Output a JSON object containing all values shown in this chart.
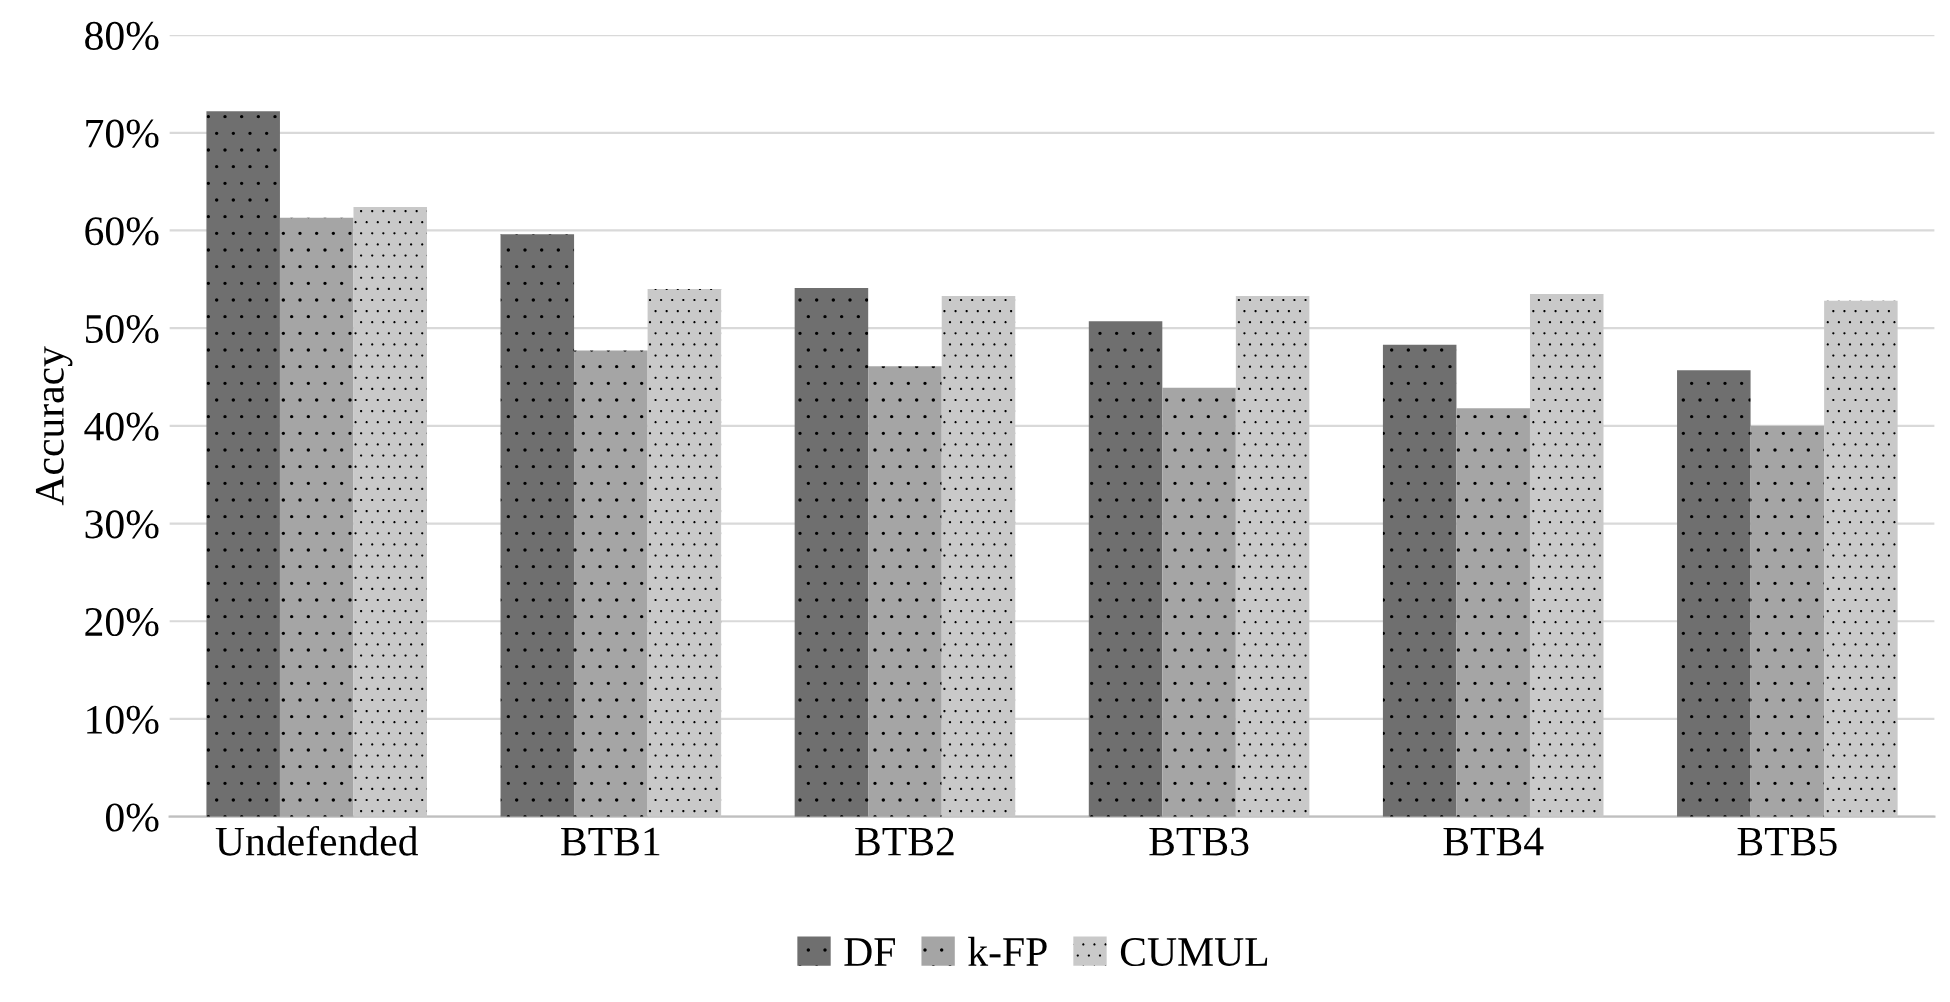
{
  "chart_data": {
    "type": "bar",
    "ylabel": "Accuracy",
    "categories": [
      "Undefended",
      "BTB1",
      "BTB2",
      "BTB3",
      "BTB4",
      "BTB5"
    ],
    "series": [
      {
        "name": "DF",
        "color": "#6f6f6f",
        "values": [
          72.2,
          59.6,
          54.1,
          50.7,
          48.3,
          45.7
        ]
      },
      {
        "name": "k-FP",
        "color": "#a5a5a5",
        "values": [
          61.3,
          47.7,
          46.1,
          43.9,
          41.8,
          40.0
        ]
      },
      {
        "name": "CUMUL",
        "color": "#c9c9c9",
        "values": [
          62.4,
          54.0,
          53.3,
          53.3,
          53.5,
          52.8
        ]
      }
    ],
    "ylim": [
      0,
      80
    ],
    "yticks": [
      {
        "value": 0,
        "label": "0%"
      },
      {
        "value": 10,
        "label": "10%"
      },
      {
        "value": 20,
        "label": "20%"
      },
      {
        "value": 30,
        "label": "30%"
      },
      {
        "value": 40,
        "label": "40%"
      },
      {
        "value": 50,
        "label": "50%"
      },
      {
        "value": 60,
        "label": "60%"
      },
      {
        "value": 70,
        "label": "70%"
      },
      {
        "value": 80,
        "label": "80%"
      }
    ],
    "grid": "y",
    "legend": "bottom"
  }
}
